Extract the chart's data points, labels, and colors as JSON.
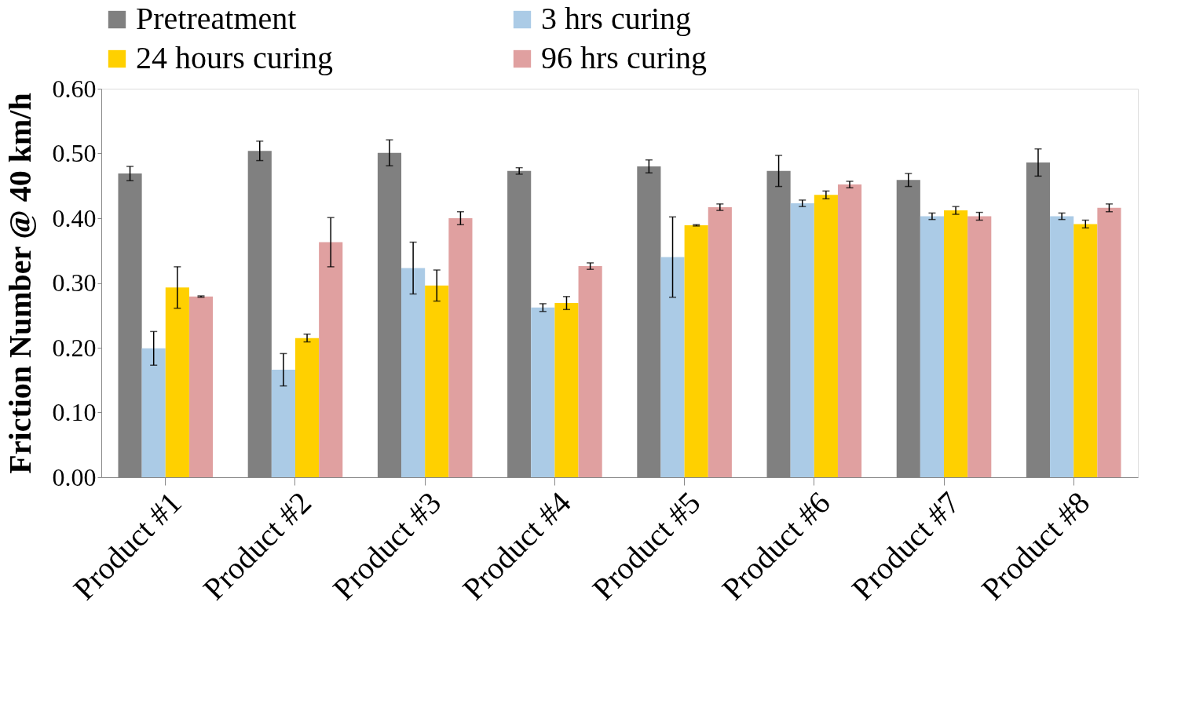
{
  "chart_data": {
    "type": "bar",
    "ylabel": "Friction Number @ 40 km/h",
    "categories": [
      "Product #1",
      "Product #2",
      "Product #3",
      "Product #4",
      "Product #5",
      "Product #6",
      "Product #7",
      "Product #8"
    ],
    "series": [
      {
        "name": "Pretreatment",
        "color": "#808080",
        "values": [
          0.469,
          0.504,
          0.501,
          0.473,
          0.48,
          0.473,
          0.459,
          0.486
        ],
        "errors": [
          0.011,
          0.015,
          0.02,
          0.005,
          0.01,
          0.024,
          0.01,
          0.021
        ]
      },
      {
        "name": "3 hrs curing",
        "color": "#abcbe6",
        "values": [
          0.199,
          0.166,
          0.323,
          0.262,
          0.34,
          0.423,
          0.403,
          0.403
        ],
        "errors": [
          0.026,
          0.025,
          0.04,
          0.006,
          0.062,
          0.005,
          0.005,
          0.005
        ]
      },
      {
        "name": "24 hours curing",
        "color": "#ffd000",
        "values": [
          0.293,
          0.215,
          0.296,
          0.269,
          0.389,
          0.436,
          0.412,
          0.391
        ],
        "errors": [
          0.032,
          0.006,
          0.024,
          0.01,
          0.001,
          0.006,
          0.006,
          0.006
        ]
      },
      {
        "name": "96 hrs curing",
        "color": "#e0a0a0",
        "values": [
          0.279,
          0.363,
          0.4,
          0.326,
          0.417,
          0.452,
          0.403,
          0.416
        ],
        "errors": [
          0.001,
          0.038,
          0.01,
          0.005,
          0.005,
          0.005,
          0.006,
          0.006
        ]
      }
    ],
    "ylim": [
      0,
      0.6
    ],
    "yticks": [
      {
        "value": 0,
        "label": "0.00"
      },
      {
        "value": 0.1,
        "label": "0.10"
      },
      {
        "value": 0.2,
        "label": "0.20"
      },
      {
        "value": 0.3,
        "label": "0.30"
      },
      {
        "value": 0.4,
        "label": "0.40"
      },
      {
        "value": 0.5,
        "label": "0.50"
      },
      {
        "value": 0.6,
        "label": "0.60"
      }
    ],
    "grid": false,
    "legend": "top"
  }
}
